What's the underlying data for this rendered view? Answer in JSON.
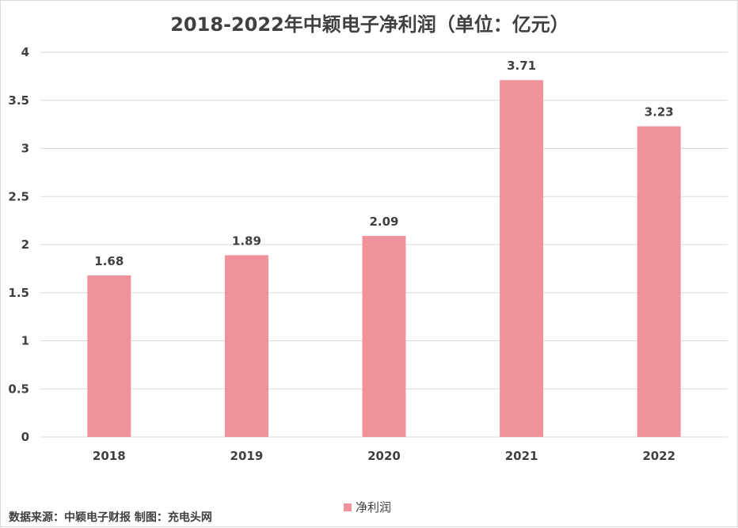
{
  "chart_data": {
    "type": "bar",
    "title": "2018-2022年中颖电子净利润（单位：亿元）",
    "categories": [
      "2018",
      "2019",
      "2020",
      "2021",
      "2022"
    ],
    "series": [
      {
        "name": "净利润",
        "values": [
          1.68,
          1.89,
          2.09,
          3.71,
          3.23
        ],
        "color": "#ef929b"
      }
    ],
    "data_labels": [
      "1.68",
      "1.89",
      "2.09",
      "3.71",
      "3.23"
    ],
    "ylim": [
      0,
      4
    ],
    "yticks": [
      "0",
      "0.5",
      "1",
      "1.5",
      "2",
      "2.5",
      "3",
      "3.5",
      "4"
    ],
    "xlabel": "",
    "ylabel": "",
    "grid": true,
    "legend_position": "bottom"
  },
  "source_note": "数据来源：中颖电子财报  制图：充电头网",
  "colors": {
    "bar": "#ef929b",
    "grid": "#d9d9d9",
    "text": "#404040"
  }
}
